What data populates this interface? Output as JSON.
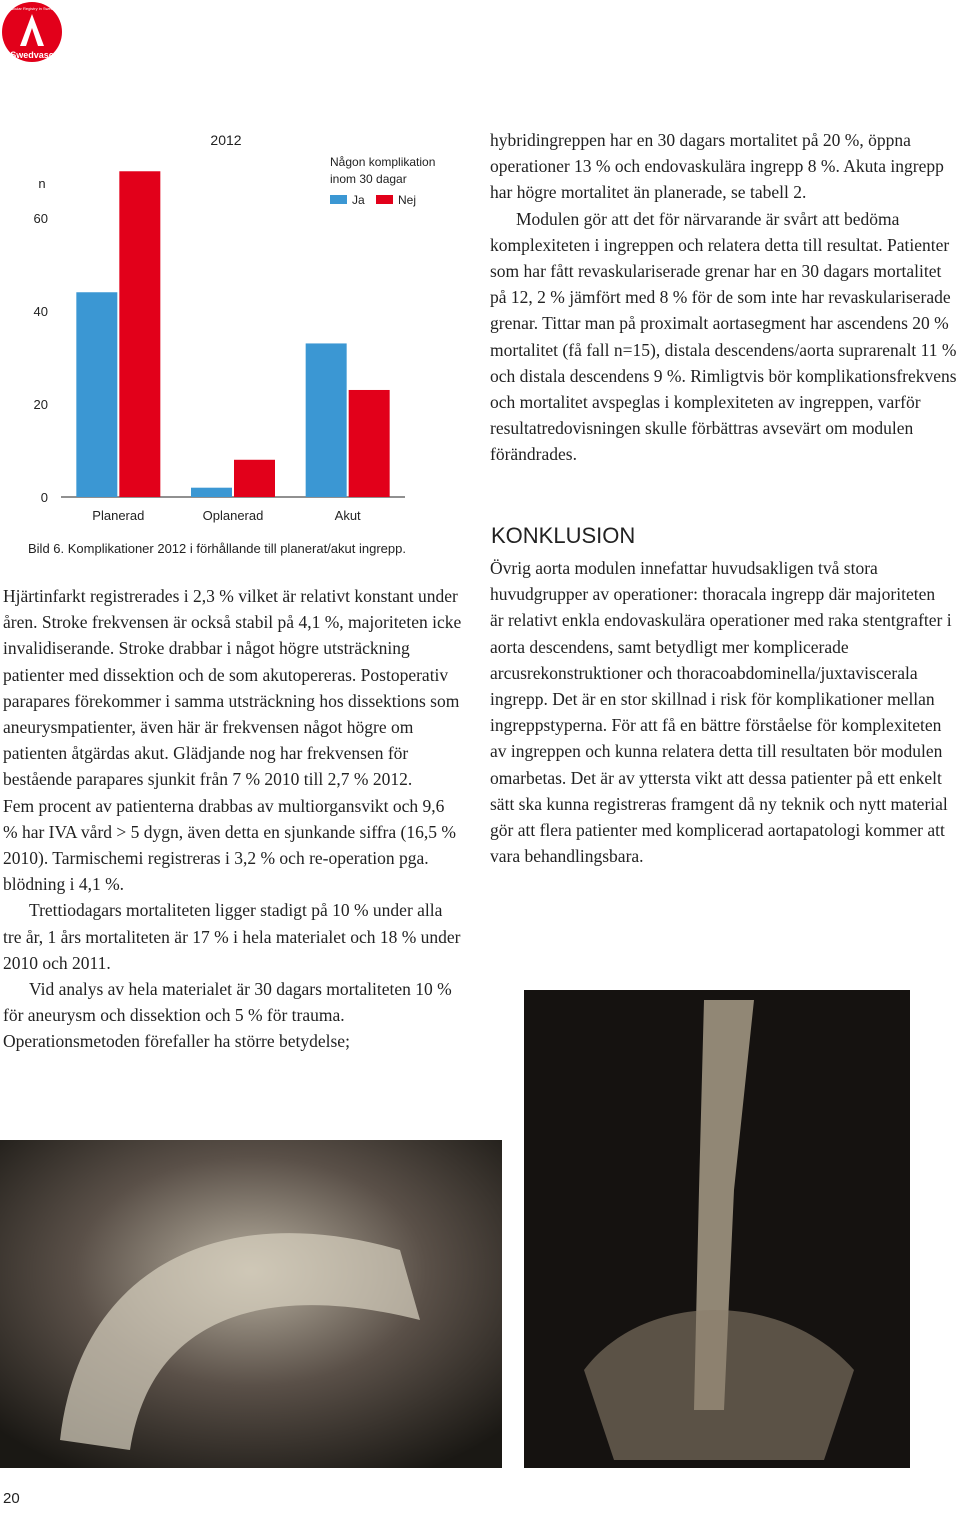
{
  "logo": {
    "name": "Swedvasc",
    "subtitle": "Vascular Registry in Sweden"
  },
  "chart_data": {
    "type": "bar",
    "title": "2012",
    "y_label": "n",
    "categories": [
      "Planerad",
      "Oplanerad",
      "Akut"
    ],
    "legend_title": "Någon komplikation inom 30 dagar",
    "series": [
      {
        "name": "Ja",
        "color": "#3b97d3",
        "values": [
          44,
          2,
          33
        ]
      },
      {
        "name": "Nej",
        "color": "#e2001a",
        "values": [
          70,
          8,
          23
        ]
      }
    ],
    "ylim": [
      0,
      75
    ],
    "yticks": [
      0,
      20,
      40,
      60
    ],
    "grid": false,
    "caption": "Bild 6. Komplikationer 2012 i förhållande till planerat/akut ingrepp."
  },
  "left_column": [
    "Hjärtinfarkt registrerades i 2,3 % vilket är relativt konstant under åren. Stroke frekvensen är också stabil på 4,1 %, majoriteten icke invalidiserande. Stroke drabbar i något högre utsträckning patienter med dissektion och de som akutopereras. Postoperativ parapares förekommer i samma utsträckning hos dissektions som aneurysmpatienter, även här är frekvensen något högre om patienten åtgärdas akut. Glädjande nog har frekvensen för bestående parapares sjunkit från 7 % 2010 till 2,7 % 2012.",
    "Fem procent av patienterna drabbas av multiorgansvikt och 9,6 % har IVA vård > 5 dygn, även detta en sjunkande siffra (16,5 % 2010). Tarmischemi registreras i 3,2 % och re-operation pga. blödning i 4,1 %.",
    "Trettiodagars mortaliteten ligger stadigt på 10 % under alla tre år, 1 års mortaliteten är 17 % i hela materialet och 18 % under 2010 och 2011.",
    "Vid analys av hela materialet är 30 dagars mortaliteten 10 % för aneurysm och dissektion och 5 % för trauma. Operationsmetoden förefaller ha större betydelse;"
  ],
  "right_column": [
    "hybridingreppen har en 30 dagars mortalitet på 20 %, öppna operationer 13 % och endovaskulära ingrepp 8 %. Akuta ingrepp har högre mortalitet än planerade, se tabell 2.",
    "Modulen gör att det för närvarande är svårt att bedöma komplexiteten i ingreppen och relatera detta till resultat. Patienter som har fått revaskulariserade grenar har en 30 dagars mortalitet på 12, 2 % jämfört med 8 % för de som inte har revaskulariserade grenar. Tittar man på proximalt aortasegment har ascendens 20 % mortalitet (få fall n=15), distala descendens/aorta suprarenalt 11 % och distala descendens 9 %. Rimligtvis bör komplikationsfrekvens och mortalitet avspeglas i komplexiteten av ingreppen, varför resultatredovisningen skulle förbättras avsevärt om modulen förändrades."
  ],
  "conclusion": {
    "heading": "KONKLUSION",
    "text": "Övrig aorta modulen innefattar huvudsakligen två stora huvudgrupper av operationer: thoracala ingrepp där majoriteten är relativt enkla endovaskulära operationer med raka stentgrafter i aorta descendens, samt betydligt mer komplicerade arcusrekonstruktioner och thoracoabdominella/juxtaviscerala ingrepp. Det är en stor skillnad i risk för komplikationer mellan ingreppstyperna. För att få en bättre förståelse för komplexiteten av ingreppen och kunna relatera detta till resultaten bör modulen omarbetas. Det är av yttersta vikt att dessa patienter på ett enkelt sätt ska kunna registreras framgent då ny teknik och nytt material gör att flera patienter med komplicerad aortapatologi kommer att vara behandlingsbara."
  },
  "page_number": "20"
}
